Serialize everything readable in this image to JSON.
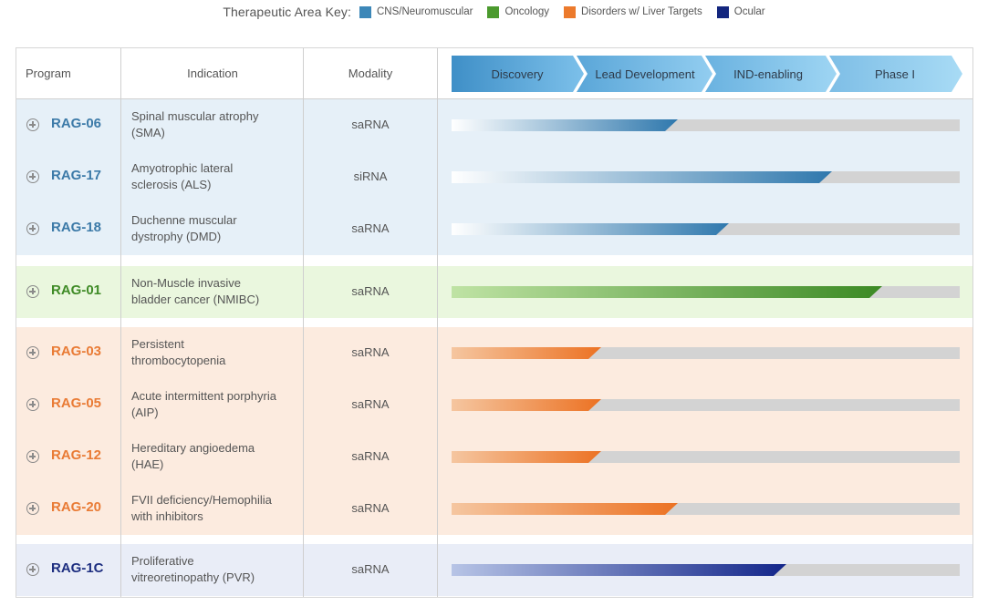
{
  "key": {
    "title": "Therapeutic Area Key:",
    "items": [
      {
        "label": "CNS/Neuromuscular",
        "color": "#3c87b8"
      },
      {
        "label": "Oncology",
        "color": "#4b9a2e"
      },
      {
        "label": "Disorders w/ Liver Targets",
        "color": "#ec7a2c"
      },
      {
        "label": "Ocular",
        "color": "#13267e"
      }
    ]
  },
  "header": {
    "program": "Program",
    "indication": "Indication",
    "modality": "Modality"
  },
  "phases": [
    "Discovery",
    "Lead Development",
    "IND-enabling",
    "Phase I"
  ],
  "groups": [
    {
      "area": "CNS/Neuromuscular",
      "bg": "#e6f0f8",
      "text_color": "#3c7aa8",
      "bar_from": "#ffffff",
      "bar_to": "#2f78ad",
      "rows": [
        {
          "program": "RAG-06",
          "indication_1": "Spinal muscular atrophy",
          "indication_2": "(SMA)",
          "modality": "saRNA",
          "progress": 0.445
        },
        {
          "program": "RAG-17",
          "indication_1": "Amyotrophic lateral",
          "indication_2": "sclerosis (ALS)",
          "modality": "siRNA",
          "progress": 0.748
        },
        {
          "program": "RAG-18",
          "indication_1": "Duchenne muscular",
          "indication_2": "dystrophy (DMD)",
          "modality": "saRNA",
          "progress": 0.545
        }
      ]
    },
    {
      "area": "Oncology",
      "bg": "#eaf7de",
      "text_color": "#3f8b26",
      "bar_from": "#bfe3a4",
      "bar_to": "#3c8a24",
      "rows": [
        {
          "program": "RAG-01",
          "indication_1": "Non-Muscle invasive",
          "indication_2": "bladder cancer (NMIBC)",
          "modality": "saRNA",
          "progress": 0.848
        }
      ]
    },
    {
      "area": "Disorders w/ Liver Targets",
      "bg": "#fcebdf",
      "text_color": "#e97b35",
      "bar_from": "#f5c6a0",
      "bar_to": "#ec7223",
      "rows": [
        {
          "program": "RAG-03",
          "indication_1": "Persistent",
          "indication_2": "thrombocytopenia",
          "modality": "saRNA",
          "progress": 0.295
        },
        {
          "program": "RAG-05",
          "indication_1": "Acute intermittent porphyria",
          "indication_2": "(AIP)",
          "modality": "saRNA",
          "progress": 0.295
        },
        {
          "program": "RAG-12",
          "indication_1": "Hereditary angioedema",
          "indication_2": "(HAE)",
          "modality": "saRNA",
          "progress": 0.295
        },
        {
          "program": "RAG-20",
          "indication_1": "FVII deficiency/Hemophilia",
          "indication_2": "with inhibitors",
          "modality": "saRNA",
          "progress": 0.445
        }
      ]
    },
    {
      "area": "Ocular",
      "bg": "#e9edf7",
      "text_color": "#1d2e80",
      "bar_from": "#b7c4e6",
      "bar_to": "#13268a",
      "rows": [
        {
          "program": "RAG-1C",
          "indication_1": "Proliferative",
          "indication_2": "vitreoretinopathy (PVR)",
          "modality": "saRNA",
          "progress": 0.658
        }
      ]
    }
  ]
}
